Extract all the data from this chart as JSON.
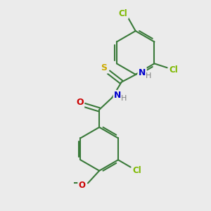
{
  "bg_color": "#ebebeb",
  "bond_color": "#3a7a3a",
  "atom_colors": {
    "Cl": "#7db800",
    "N": "#0000cc",
    "S": "#ccaa00",
    "O": "#cc0000",
    "C": "#3a7a3a",
    "H": "#808080"
  }
}
